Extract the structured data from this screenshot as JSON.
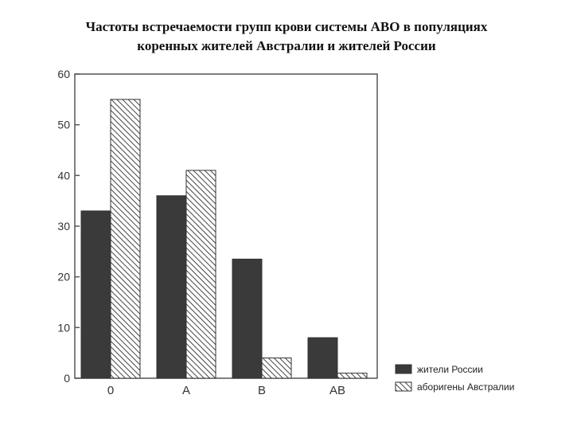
{
  "chart_data": {
    "type": "bar",
    "title_lines": [
      "Частоты встречаемости групп крови системы АВО в популяциях",
      "коренных жителей Австралии и жителей России"
    ],
    "categories": [
      "0",
      "A",
      "B",
      "AB"
    ],
    "series": [
      {
        "name": "жители России",
        "values": [
          33,
          36,
          23.5,
          8
        ],
        "color": "#3a3a3a",
        "pattern": "solid"
      },
      {
        "name": "аборигены Австралии",
        "values": [
          55,
          41,
          4,
          1
        ],
        "color": "#555555",
        "pattern": "hatch"
      }
    ],
    "yticks": [
      0,
      10,
      20,
      30,
      40,
      50,
      60
    ],
    "ylim": [
      0,
      60
    ],
    "xlabel": "",
    "ylabel": "",
    "grid": false,
    "legend": "bottom-right"
  }
}
